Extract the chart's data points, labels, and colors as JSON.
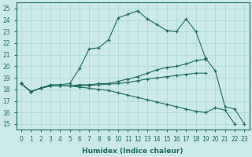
{
  "xlabel": "Humidex (Indice chaleur)",
  "xlim": [
    -0.5,
    23.5
  ],
  "ylim": [
    14.5,
    25.5
  ],
  "yticks": [
    15,
    16,
    17,
    18,
    19,
    20,
    21,
    22,
    23,
    24,
    25
  ],
  "xticks": [
    0,
    1,
    2,
    3,
    4,
    5,
    6,
    7,
    8,
    9,
    10,
    11,
    12,
    13,
    14,
    15,
    16,
    17,
    18,
    19,
    20,
    21,
    22,
    23
  ],
  "background_color": "#cce9e7",
  "grid_color": "#a8d5d2",
  "line_color": "#1f6b5e",
  "curves": [
    [
      18.5,
      17.8,
      18.1,
      18.4,
      18.4,
      18.5,
      19.8,
      21.5,
      21.6,
      22.3,
      24.2,
      24.5,
      24.8,
      24.1,
      23.6,
      23.1,
      23.0,
      24.1,
      23.0,
      20.7,
      null,
      null,
      null,
      null
    ],
    [
      18.5,
      17.8,
      18.1,
      18.3,
      18.3,
      18.3,
      18.4,
      18.4,
      18.5,
      18.5,
      18.7,
      18.9,
      19.1,
      19.4,
      19.7,
      19.9,
      20.0,
      20.2,
      20.5,
      20.6,
      null,
      null,
      null,
      null
    ],
    [
      18.5,
      17.8,
      18.1,
      18.3,
      18.3,
      18.3,
      18.3,
      18.35,
      18.4,
      18.45,
      18.5,
      18.6,
      18.75,
      18.9,
      19.0,
      19.1,
      19.2,
      19.3,
      19.4,
      19.4,
      null,
      null,
      null,
      null
    ],
    [
      18.5,
      17.8,
      18.1,
      18.3,
      18.3,
      18.3,
      18.2,
      18.1,
      18.0,
      17.9,
      17.7,
      17.5,
      17.3,
      17.1,
      16.9,
      16.7,
      16.5,
      16.3,
      16.1,
      16.0,
      16.4,
      16.2,
      15.0,
      null
    ],
    [
      null,
      null,
      null,
      null,
      null,
      null,
      null,
      null,
      null,
      null,
      null,
      null,
      null,
      null,
      null,
      null,
      null,
      null,
      null,
      20.7,
      19.6,
      16.5,
      16.3,
      15.0
    ]
  ],
  "tick_fontsize": 5.5,
  "label_fontsize": 6.5
}
